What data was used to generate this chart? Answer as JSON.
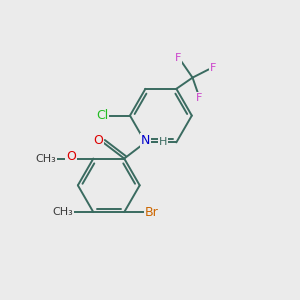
{
  "bg_color": "#ebebeb",
  "bond_color": "#3a6b60",
  "bond_width": 1.4,
  "atom_colors": {
    "O": "#dd0000",
    "N": "#0000cc",
    "Cl": "#22bb22",
    "Br": "#cc6600",
    "F": "#cc44cc",
    "C": "#3a3a3a",
    "H": "#3a6b60"
  },
  "font_size": 9,
  "small_font_size": 8
}
